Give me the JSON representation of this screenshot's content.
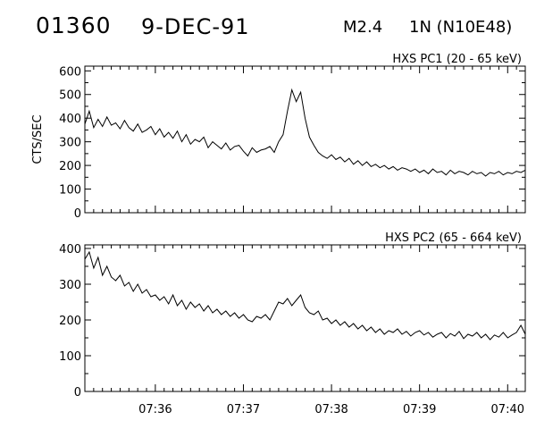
{
  "header": {
    "event_id": "01360",
    "date": "9-DEC-91",
    "goes_class": "M2.4",
    "location": "1N (N10E48)"
  },
  "colors": {
    "line": "#000000",
    "background": "#ffffff"
  },
  "chart_data": [
    {
      "type": "line",
      "title": "HXS PC1 (20 - 65 keV)",
      "ylabel": "CTS/SEC",
      "ylim": [
        0,
        620
      ],
      "yticks": [
        0,
        100,
        200,
        300,
        400,
        500,
        600
      ],
      "xlim": [
        "07:35:12",
        "07:40:12"
      ],
      "xticks": [
        "07:36",
        "07:37",
        "07:38",
        "07:39",
        "07:40"
      ],
      "series": [
        {
          "x": [
            "07:35:12",
            "07:35:15",
            "07:35:18",
            "07:35:21",
            "07:35:24",
            "07:35:27",
            "07:35:30",
            "07:35:33",
            "07:35:36",
            "07:35:39",
            "07:35:42",
            "07:35:45",
            "07:35:48",
            "07:35:51",
            "07:35:54",
            "07:35:57",
            "07:36:00",
            "07:36:03",
            "07:36:06",
            "07:36:09",
            "07:36:12",
            "07:36:15",
            "07:36:18",
            "07:36:21",
            "07:36:24",
            "07:36:27",
            "07:36:30",
            "07:36:33",
            "07:36:36",
            "07:36:39",
            "07:36:42",
            "07:36:45",
            "07:36:48",
            "07:36:51",
            "07:36:54",
            "07:36:57",
            "07:37:00",
            "07:37:03",
            "07:37:06",
            "07:37:09",
            "07:37:12",
            "07:37:15",
            "07:37:18",
            "07:37:21",
            "07:37:24",
            "07:37:27",
            "07:37:30",
            "07:37:33",
            "07:37:36",
            "07:37:39",
            "07:37:42",
            "07:37:45",
            "07:37:48",
            "07:37:51",
            "07:37:54",
            "07:37:57",
            "07:38:00",
            "07:38:03",
            "07:38:06",
            "07:38:09",
            "07:38:12",
            "07:38:15",
            "07:38:18",
            "07:38:21",
            "07:38:24",
            "07:38:27",
            "07:38:30",
            "07:38:33",
            "07:38:36",
            "07:38:39",
            "07:38:42",
            "07:38:45",
            "07:38:48",
            "07:38:51",
            "07:38:54",
            "07:38:57",
            "07:39:00",
            "07:39:03",
            "07:39:06",
            "07:39:09",
            "07:39:12",
            "07:39:15",
            "07:39:18",
            "07:39:21",
            "07:39:24",
            "07:39:27",
            "07:39:30",
            "07:39:33",
            "07:39:36",
            "07:39:39",
            "07:39:42",
            "07:39:45",
            "07:39:48",
            "07:39:51",
            "07:39:54",
            "07:39:57",
            "07:40:00",
            "07:40:03",
            "07:40:06",
            "07:40:09",
            "07:40:12"
          ],
          "y": [
            375,
            430,
            360,
            395,
            365,
            405,
            370,
            380,
            355,
            390,
            360,
            345,
            375,
            340,
            350,
            365,
            330,
            355,
            320,
            340,
            315,
            345,
            300,
            330,
            290,
            310,
            300,
            320,
            275,
            300,
            285,
            270,
            295,
            265,
            280,
            285,
            260,
            240,
            275,
            255,
            265,
            270,
            280,
            255,
            300,
            330,
            430,
            520,
            470,
            510,
            400,
            320,
            285,
            255,
            240,
            230,
            245,
            225,
            235,
            215,
            230,
            205,
            220,
            200,
            215,
            195,
            205,
            190,
            200,
            185,
            195,
            180,
            190,
            185,
            175,
            185,
            170,
            180,
            165,
            185,
            170,
            175,
            160,
            180,
            165,
            175,
            170,
            160,
            175,
            165,
            170,
            155,
            170,
            165,
            175,
            160,
            170,
            165,
            175,
            170,
            180
          ]
        }
      ]
    },
    {
      "type": "line",
      "title": "HXS PC2 (65 - 664 keV)",
      "ylabel": "",
      "ylim": [
        0,
        410
      ],
      "yticks": [
        0,
        100,
        200,
        300,
        400
      ],
      "xlim": [
        "07:35:12",
        "07:40:12"
      ],
      "xticks": [
        "07:36",
        "07:37",
        "07:38",
        "07:39",
        "07:40"
      ],
      "series": [
        {
          "x": [
            "07:35:12",
            "07:35:15",
            "07:35:18",
            "07:35:21",
            "07:35:24",
            "07:35:27",
            "07:35:30",
            "07:35:33",
            "07:35:36",
            "07:35:39",
            "07:35:42",
            "07:35:45",
            "07:35:48",
            "07:35:51",
            "07:35:54",
            "07:35:57",
            "07:36:00",
            "07:36:03",
            "07:36:06",
            "07:36:09",
            "07:36:12",
            "07:36:15",
            "07:36:18",
            "07:36:21",
            "07:36:24",
            "07:36:27",
            "07:36:30",
            "07:36:33",
            "07:36:36",
            "07:36:39",
            "07:36:42",
            "07:36:45",
            "07:36:48",
            "07:36:51",
            "07:36:54",
            "07:36:57",
            "07:37:00",
            "07:37:03",
            "07:37:06",
            "07:37:09",
            "07:37:12",
            "07:37:15",
            "07:37:18",
            "07:37:21",
            "07:37:24",
            "07:37:27",
            "07:37:30",
            "07:37:33",
            "07:37:36",
            "07:37:39",
            "07:37:42",
            "07:37:45",
            "07:37:48",
            "07:37:51",
            "07:37:54",
            "07:37:57",
            "07:38:00",
            "07:38:03",
            "07:38:06",
            "07:38:09",
            "07:38:12",
            "07:38:15",
            "07:38:18",
            "07:38:21",
            "07:38:24",
            "07:38:27",
            "07:38:30",
            "07:38:33",
            "07:38:36",
            "07:38:39",
            "07:38:42",
            "07:38:45",
            "07:38:48",
            "07:38:51",
            "07:38:54",
            "07:38:57",
            "07:39:00",
            "07:39:03",
            "07:39:06",
            "07:39:09",
            "07:39:12",
            "07:39:15",
            "07:39:18",
            "07:39:21",
            "07:39:24",
            "07:39:27",
            "07:39:30",
            "07:39:33",
            "07:39:36",
            "07:39:39",
            "07:39:42",
            "07:39:45",
            "07:39:48",
            "07:39:51",
            "07:39:54",
            "07:39:57",
            "07:40:00",
            "07:40:03",
            "07:40:06",
            "07:40:09",
            "07:40:12"
          ],
          "y": [
            370,
            390,
            345,
            375,
            325,
            350,
            320,
            310,
            325,
            295,
            305,
            280,
            300,
            275,
            285,
            265,
            270,
            255,
            265,
            245,
            270,
            240,
            255,
            230,
            250,
            235,
            245,
            225,
            240,
            220,
            230,
            215,
            225,
            210,
            220,
            205,
            215,
            200,
            195,
            210,
            205,
            215,
            200,
            225,
            250,
            245,
            260,
            240,
            255,
            270,
            235,
            220,
            215,
            225,
            200,
            205,
            190,
            200,
            185,
            195,
            180,
            190,
            175,
            185,
            170,
            180,
            165,
            175,
            160,
            170,
            165,
            175,
            160,
            168,
            155,
            165,
            170,
            158,
            165,
            152,
            160,
            165,
            150,
            162,
            155,
            168,
            148,
            160,
            155,
            165,
            150,
            160,
            145,
            158,
            152,
            165,
            150,
            158,
            165,
            185,
            160
          ]
        }
      ]
    }
  ]
}
